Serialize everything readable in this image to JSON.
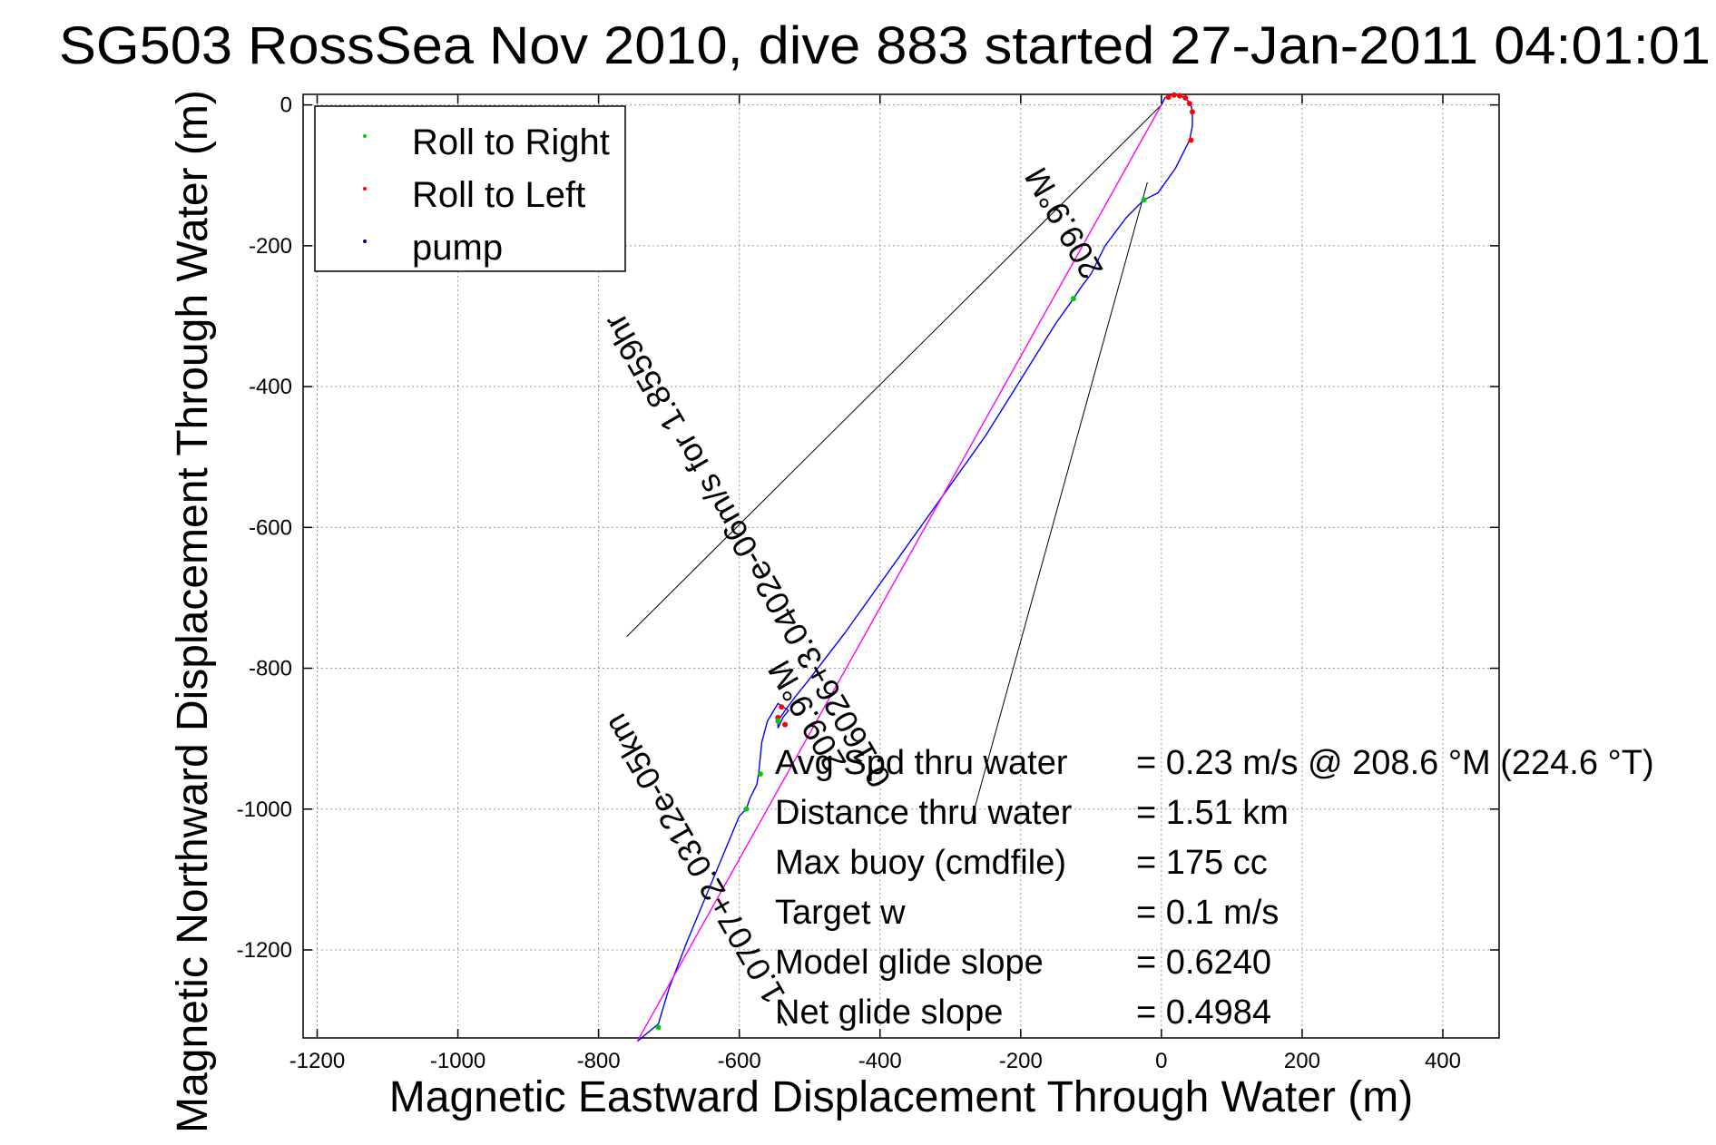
{
  "title": "SG503 RossSea Nov 2010, dive 883 started 27-Jan-2011 04:01:01",
  "chart_data": {
    "type": "line",
    "title": "SG503 RossSea Nov 2010, dive 883 started 27-Jan-2011 04:01:01",
    "xlabel": "Magnetic Eastward Displacement Through Water (m)",
    "ylabel": "Magnetic Northward Displacement Through Water (m)",
    "xlim": [
      -1220,
      480
    ],
    "ylim": [
      -1325,
      15
    ],
    "xticks": [
      -1200,
      -1000,
      -800,
      -600,
      -400,
      -200,
      0,
      200,
      400
    ],
    "yticks": [
      0,
      -200,
      -400,
      -600,
      -800,
      -1000,
      -1200
    ],
    "xtick_labels": [
      "-1200",
      "-1000",
      "-800",
      "-600",
      "-400",
      "-200",
      "0",
      "200",
      "400"
    ],
    "ytick_labels": [
      "0",
      "-200",
      "-400",
      "-600",
      "-800",
      "-1000",
      "-1200"
    ],
    "grid": true,
    "legend": {
      "placement": "top-left",
      "entries": [
        {
          "label": "Roll to Right",
          "color": "#00cc00"
        },
        {
          "label": "Roll to Left",
          "color": "#ff0000"
        },
        {
          "label": "pump",
          "color": "#000080"
        }
      ]
    },
    "series": [
      {
        "color": "#0000ff",
        "x": [
          0,
          5,
          12,
          20,
          28,
          36,
          42,
          44,
          44,
          40,
          20,
          -5,
          -25,
          -50,
          -80,
          -100,
          -115,
          -125,
          -150,
          -200,
          -250,
          -300,
          -350,
          -400,
          -450,
          -500,
          -520,
          -535,
          -545,
          -545,
          -538,
          -530,
          -545,
          -560,
          -568,
          -572,
          -575,
          -585,
          -590,
          -600,
          -625,
          -650,
          -675,
          -700,
          -715,
          -745
        ],
        "y": [
          0,
          10,
          14,
          14,
          13,
          8,
          0,
          -10,
          -30,
          -50,
          -90,
          -125,
          -135,
          -160,
          -200,
          -240,
          -260,
          -275,
          -310,
          -390,
          -470,
          -540,
          -610,
          -680,
          -750,
          -815,
          -840,
          -860,
          -875,
          -885,
          -870,
          -860,
          -850,
          -875,
          -905,
          -945,
          -965,
          -985,
          -1000,
          -1010,
          -1070,
          -1130,
          -1190,
          -1255,
          -1305,
          -1330
        ]
      },
      {
        "color": "#ff00ff",
        "x": [
          0,
          -745
        ],
        "y": [
          0,
          -1330
        ]
      }
    ],
    "markers": [
      {
        "kind": "Roll to Left",
        "color": "#ff0000",
        "x": [
          10,
          18,
          26,
          34,
          40,
          44,
          42,
          -540,
          -545,
          -535
        ],
        "y": [
          11,
          14,
          13,
          10,
          2,
          -10,
          -50,
          -855,
          -870,
          -880
        ]
      },
      {
        "kind": "Roll to Right",
        "color": "#00cc00",
        "x": [
          -25,
          -125,
          -545,
          -570,
          -590,
          -715
        ],
        "y": [
          -135,
          -275,
          -875,
          -950,
          -1000,
          -1310
        ]
      }
    ],
    "reference_lines": [
      {
        "x": [
          0,
          -760
        ],
        "y": [
          0,
          -755
        ]
      },
      {
        "x": [
          -20,
          -270
        ],
        "y": [
          -110,
          -1015
        ]
      }
    ],
    "rotated_labels": [
      {
        "text": "0.16026+3.0402e-06m/s for 1.8559hr",
        "x": -575,
        "y": -625,
        "angle": 240
      },
      {
        "text": "209.9°M",
        "x": -125,
        "y": -160,
        "angle": 240
      },
      {
        "text": "= 1.0707+2.0312e-05km",
        "x": -640,
        "y": -1080,
        "angle": 240
      },
      {
        "text": "209.9°M",
        "x": -490,
        "y": -860,
        "angle": 240
      }
    ],
    "annotations": [
      {
        "label": "Avg Spd thru water",
        "value": "=  0.23 m/s @ 208.6 °M (224.6 °T)"
      },
      {
        "label": "Distance thru water",
        "value": "=  1.51 km"
      },
      {
        "label": "Max buoy (cmdfile)",
        "value": "= 175 cc"
      },
      {
        "label": "Target w",
        "value": "= 0.1 m/s"
      },
      {
        "label": "Model glide slope",
        "value": "= 0.6240"
      },
      {
        "label": "Net glide slope",
        "value": "= 0.4984"
      }
    ],
    "colors": {
      "track": "#0000ff",
      "straight_track": "#ff00ff",
      "roll_right": "#00cc00",
      "roll_left": "#ff0000",
      "pump": "#000080",
      "grid": "#999999"
    }
  }
}
